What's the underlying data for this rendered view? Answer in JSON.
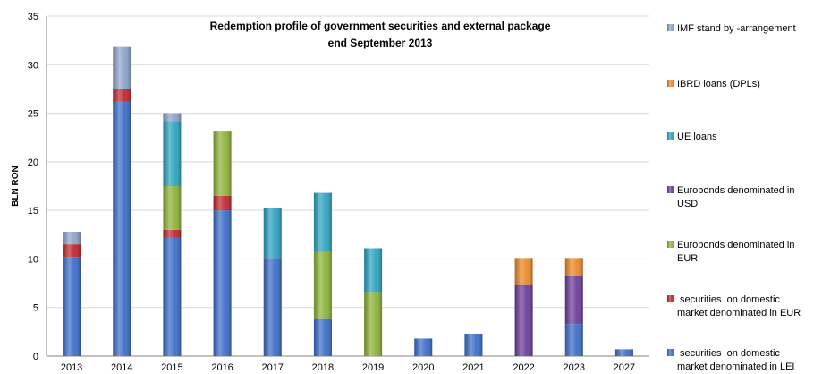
{
  "chart_data": {
    "type": "bar",
    "stacked": true,
    "title": "Redemption profile of government securities and external package",
    "subtitle": "end September 2013",
    "xlabel": "",
    "ylabel": "BLN RON",
    "ylim": [
      0,
      35
    ],
    "yticks": [
      "0",
      "5",
      "10",
      "15",
      "20",
      "25",
      "30",
      "35"
    ],
    "grid": "horizontal",
    "legend_position": "right",
    "categories": [
      "2013",
      "2014",
      "2015",
      "2016",
      "2017",
      "2018",
      "2019",
      "2020",
      "2021",
      "2022",
      "2023",
      "2027"
    ],
    "series": [
      {
        "name": "securities  on domestic market denominated in LEI",
        "legend_lines": [
          " securities  on domestic",
          "market denominated in LEI"
        ],
        "color": "#3d6ec9",
        "values": [
          10.2,
          26.2,
          12.2,
          15.0,
          10.1,
          3.9,
          0,
          1.8,
          2.3,
          0,
          3.3,
          0.7
        ]
      },
      {
        "name": "securities  on domestic market denominated in EUR",
        "legend_lines": [
          " securities  on domestic",
          "market denominated in EUR"
        ],
        "color": "#c0282d",
        "values": [
          1.3,
          1.3,
          0.8,
          1.5,
          0,
          0,
          0,
          0,
          0,
          0,
          0,
          0
        ]
      },
      {
        "name": "Eurobonds denominated in EUR",
        "legend_lines": [
          "Eurobonds denominated in",
          "EUR"
        ],
        "color": "#8db33a",
        "values": [
          0,
          0,
          4.5,
          6.7,
          0,
          6.8,
          6.6,
          0,
          0,
          0,
          0,
          0
        ]
      },
      {
        "name": "Eurobonds denominated in USD",
        "legend_lines": [
          "Eurobonds denominated in",
          "USD"
        ],
        "color": "#6c3f9a",
        "values": [
          0,
          0,
          0,
          0,
          0,
          0,
          0,
          0,
          0,
          7.4,
          4.9,
          0
        ]
      },
      {
        "name": "UE loans",
        "legend_lines": [
          "UE loans"
        ],
        "color": "#2fa3bf",
        "values": [
          0,
          0,
          6.7,
          0,
          5.1,
          6.1,
          4.5,
          0,
          0,
          0,
          0,
          0
        ]
      },
      {
        "name": "IBRD loans (DPLs)",
        "legend_lines": [
          "IBRD loans (DPLs)"
        ],
        "color": "#ea8a2b",
        "values": [
          0,
          0,
          0,
          0,
          0,
          0,
          0,
          0,
          0,
          2.7,
          1.9,
          0
        ]
      },
      {
        "name": "IMF stand by -arrangement",
        "legend_lines": [
          "IMF stand by -arrangement"
        ],
        "color": "#8ea3cc",
        "values": [
          1.3,
          4.4,
          0.8,
          0,
          0,
          0,
          0,
          0,
          0,
          0,
          0,
          0
        ]
      }
    ]
  }
}
